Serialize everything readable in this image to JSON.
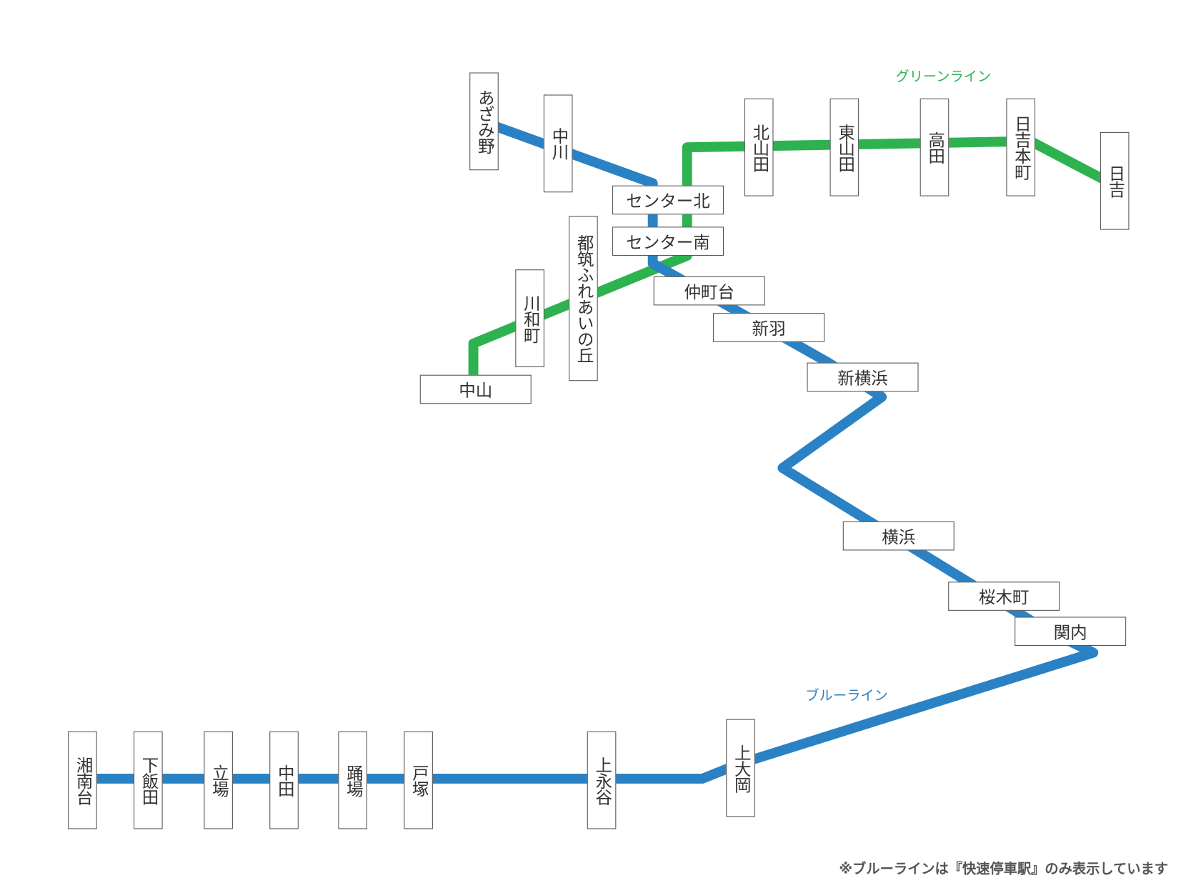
{
  "colors": {
    "blue_line": "#2a82c4",
    "green_line": "#2db24f"
  },
  "lines": {
    "green_label": "グリーンライン",
    "blue_label": "ブルーライン"
  },
  "stations": [
    {
      "name": "あざみ野",
      "orient": "v"
    },
    {
      "name": "中川",
      "orient": "v"
    },
    {
      "name": "センター北",
      "orient": "h"
    },
    {
      "name": "センター南",
      "orient": "h"
    },
    {
      "name": "仲町台",
      "orient": "h"
    },
    {
      "name": "新羽",
      "orient": "h"
    },
    {
      "name": "新横浜",
      "orient": "h"
    },
    {
      "name": "横浜",
      "orient": "h"
    },
    {
      "name": "桜木町",
      "orient": "h"
    },
    {
      "name": "関内",
      "orient": "h"
    },
    {
      "name": "上大岡",
      "orient": "v"
    },
    {
      "name": "上永谷",
      "orient": "v"
    },
    {
      "name": "戸塚",
      "orient": "v"
    },
    {
      "name": "踊場",
      "orient": "v"
    },
    {
      "name": "中田",
      "orient": "v"
    },
    {
      "name": "立場",
      "orient": "v"
    },
    {
      "name": "下飯田",
      "orient": "v"
    },
    {
      "name": "湘南台",
      "orient": "v"
    },
    {
      "name": "北山田",
      "orient": "v"
    },
    {
      "name": "東山田",
      "orient": "v"
    },
    {
      "name": "高田",
      "orient": "v"
    },
    {
      "name": "日吉本町",
      "orient": "v"
    },
    {
      "name": "日吉",
      "orient": "v"
    },
    {
      "name": "都筑ふれあいの丘",
      "orient": "v"
    },
    {
      "name": "川和町",
      "orient": "v"
    },
    {
      "name": "中山",
      "orient": "h"
    }
  ],
  "footnote": "※ブルーラインは『快速停車駅』のみ表示しています"
}
